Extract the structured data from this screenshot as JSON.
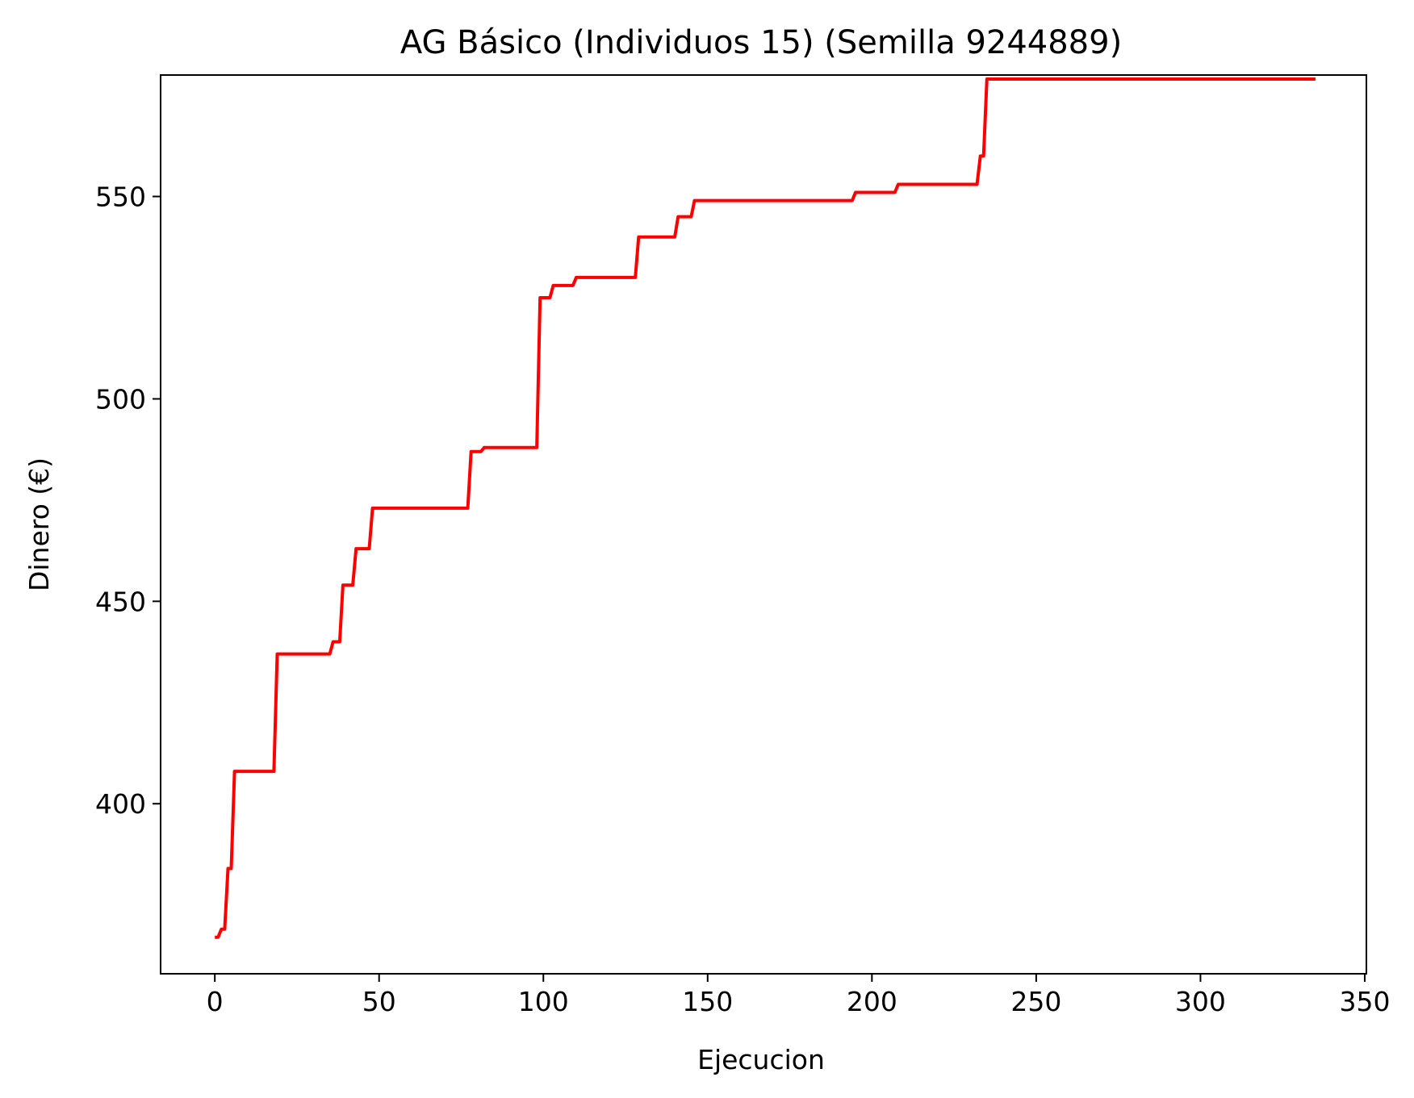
{
  "chart_data": {
    "type": "line",
    "title": "AG Básico (Individuos 15) (Semilla 9244889)",
    "xlabel": "Ejecucion",
    "ylabel": "Dinero (€)",
    "xlim": [
      -16.5,
      350.5
    ],
    "ylim": [
      358,
      580
    ],
    "xticks": [
      0,
      50,
      100,
      150,
      200,
      250,
      300,
      350
    ],
    "yticks": [
      400,
      450,
      500,
      550
    ],
    "grid": false,
    "series": [
      {
        "color": "#ff0000",
        "x": [
          0,
          1,
          2,
          3,
          4,
          5,
          6,
          18,
          19,
          35,
          36,
          38,
          39,
          42,
          43,
          47,
          48,
          77,
          78,
          81,
          82,
          98,
          99,
          102,
          103,
          109,
          110,
          128,
          129,
          140,
          141,
          145,
          146,
          194,
          195,
          207,
          208,
          232,
          233,
          234,
          235,
          335
        ],
        "y": [
          367,
          367,
          369,
          369,
          384,
          384,
          408,
          408,
          437,
          437,
          440,
          440,
          454,
          454,
          463,
          463,
          473,
          473,
          487,
          487,
          488,
          488,
          525,
          525,
          528,
          528,
          530,
          530,
          540,
          540,
          545,
          545,
          549,
          549,
          551,
          551,
          553,
          553,
          560,
          560,
          579,
          579
        ]
      }
    ]
  }
}
